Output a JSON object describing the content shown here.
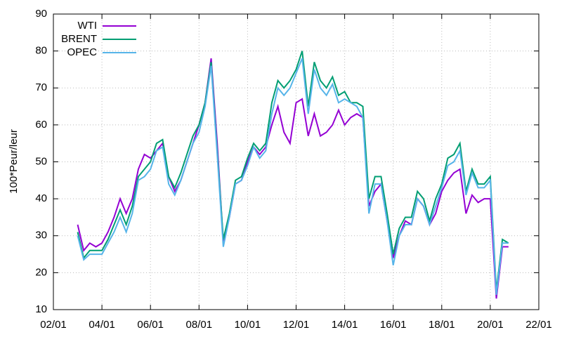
{
  "chart_data": {
    "type": "line",
    "y_label": "100*Peur/leur",
    "x": [
      2003.0,
      2003.25,
      2003.5,
      2003.75,
      2004.0,
      2004.25,
      2004.5,
      2004.75,
      2005.0,
      2005.25,
      2005.5,
      2005.75,
      2006.0,
      2006.25,
      2006.5,
      2006.75,
      2007.0,
      2007.25,
      2007.5,
      2007.75,
      2008.0,
      2008.25,
      2008.5,
      2008.75,
      2009.0,
      2009.25,
      2009.5,
      2009.75,
      2010.0,
      2010.25,
      2010.5,
      2010.75,
      2011.0,
      2011.25,
      2011.5,
      2011.75,
      2012.0,
      2012.25,
      2012.5,
      2012.75,
      2013.0,
      2013.25,
      2013.5,
      2013.75,
      2014.0,
      2014.25,
      2014.5,
      2014.75,
      2015.0,
      2015.25,
      2015.5,
      2015.75,
      2016.0,
      2016.25,
      2016.5,
      2016.75,
      2017.0,
      2017.25,
      2017.5,
      2017.75,
      2018.0,
      2018.25,
      2018.5,
      2018.75,
      2019.0,
      2019.25,
      2019.5,
      2019.75,
      2020.0,
      2020.25,
      2020.5,
      2020.75
    ],
    "series": [
      {
        "name": "WTI",
        "color": "#9400d3",
        "values": [
          33,
          26,
          28,
          27,
          28,
          31,
          35,
          40,
          36,
          40,
          48,
          52,
          51,
          53,
          55,
          46,
          42,
          45,
          50,
          55,
          60,
          66,
          78,
          55,
          28,
          35,
          44,
          45,
          50,
          54,
          52,
          54,
          60,
          65,
          58,
          55,
          66,
          67,
          57,
          63,
          57,
          58,
          60,
          64,
          60,
          62,
          63,
          62,
          38,
          42,
          44,
          34,
          24,
          30,
          34,
          33,
          40,
          38,
          33,
          36,
          42,
          45,
          47,
          48,
          36,
          41,
          39,
          40,
          40,
          13,
          27,
          27
        ]
      },
      {
        "name": "BRENT",
        "color": "#009e73",
        "values": [
          31,
          24,
          26,
          26,
          26,
          29,
          33,
          37,
          33,
          38,
          46,
          48,
          50,
          55,
          56,
          46,
          43,
          47,
          52,
          57,
          60,
          66,
          77,
          53,
          29,
          36,
          45,
          46,
          51,
          55,
          53,
          55,
          66,
          72,
          70,
          72,
          75,
          80,
          65,
          77,
          72,
          70,
          73,
          68,
          69,
          66,
          66,
          65,
          40,
          46,
          46,
          36,
          25,
          32,
          35,
          35,
          42,
          40,
          34,
          40,
          44,
          51,
          52,
          55,
          42,
          48,
          44,
          44,
          46,
          15,
          29,
          28
        ]
      },
      {
        "name": "OPEC",
        "color": "#56b4e9",
        "values": [
          30,
          23.5,
          25,
          25,
          25,
          28,
          31,
          35,
          31,
          36,
          45,
          46,
          48,
          53,
          54,
          44,
          41,
          45,
          50,
          55,
          58,
          65,
          76,
          52,
          27,
          35,
          44,
          45,
          49,
          54,
          51,
          53,
          63,
          70,
          68,
          70,
          74,
          78,
          63,
          75,
          70,
          68,
          71,
          66,
          67,
          66,
          65,
          62,
          36,
          44,
          44,
          34,
          22,
          30,
          33,
          33,
          40,
          38,
          33,
          38,
          43,
          49,
          50,
          53,
          41,
          47,
          43,
          43,
          45,
          14,
          28,
          28
        ]
      }
    ],
    "xlim": [
      2002,
      2022
    ],
    "xticks": [
      {
        "value": 2002,
        "label": "02/01"
      },
      {
        "value": 2004,
        "label": "04/01"
      },
      {
        "value": 2006,
        "label": "06/01"
      },
      {
        "value": 2008,
        "label": "08/01"
      },
      {
        "value": 2010,
        "label": "10/01"
      },
      {
        "value": 2012,
        "label": "12/01"
      },
      {
        "value": 2014,
        "label": "14/01"
      },
      {
        "value": 2016,
        "label": "16/01"
      },
      {
        "value": 2018,
        "label": "18/01"
      },
      {
        "value": 2020,
        "label": "20/01"
      },
      {
        "value": 2022,
        "label": "22/01"
      }
    ],
    "ylim": [
      10,
      90
    ],
    "yticks": [
      10,
      20,
      30,
      40,
      50,
      60,
      70,
      80,
      90
    ],
    "grid": true,
    "legend": "top-left"
  }
}
